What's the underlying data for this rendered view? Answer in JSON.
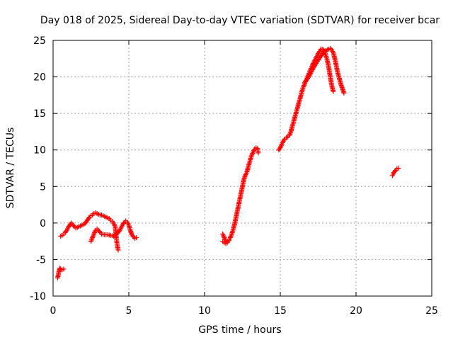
{
  "chart_data": {
    "type": "scatter",
    "title": "Day 018 of 2025, Sidereal Day-to-day VTEC variation (SDTVAR) for receiver bcar",
    "xlabel": "GPS time / hours",
    "ylabel": "SDTVAR / TECUs",
    "xlim": [
      0,
      25
    ],
    "ylim": [
      -10,
      25
    ],
    "xticks": [
      0,
      5,
      10,
      15,
      20,
      25
    ],
    "yticks": [
      -10,
      -5,
      0,
      5,
      10,
      15,
      20,
      25
    ],
    "xtick_labels": [
      "0",
      "5",
      "10",
      "15",
      "20",
      "25"
    ],
    "ytick_labels": [
      "-10",
      "-5",
      "0",
      "5",
      "10",
      "15",
      "20",
      "25"
    ],
    "grid": true,
    "marker": "+",
    "color": "#ff0000",
    "series": [
      {
        "name": "SDTVAR",
        "segments": [
          [
            [
              0.3,
              -7.5
            ],
            [
              0.35,
              -7.0
            ],
            [
              0.4,
              -6.5
            ],
            [
              0.45,
              -6.2
            ],
            [
              0.5,
              -6.3
            ],
            [
              0.6,
              -6.4
            ],
            [
              0.7,
              -6.3
            ]
          ],
          [
            [
              0.5,
              -1.8
            ],
            [
              0.6,
              -1.7
            ],
            [
              0.7,
              -1.5
            ],
            [
              0.8,
              -1.3
            ],
            [
              0.9,
              -1.0
            ],
            [
              1.0,
              -0.6
            ],
            [
              1.1,
              -0.3
            ],
            [
              1.2,
              0.0
            ],
            [
              1.3,
              -0.2
            ],
            [
              1.4,
              -0.5
            ],
            [
              1.5,
              -0.7
            ],
            [
              1.6,
              -0.6
            ],
            [
              1.7,
              -0.5
            ],
            [
              1.8,
              -0.4
            ],
            [
              1.9,
              -0.3
            ],
            [
              2.0,
              -0.2
            ],
            [
              2.1,
              -0.1
            ],
            [
              2.2,
              0.2
            ],
            [
              2.3,
              0.5
            ],
            [
              2.4,
              0.8
            ],
            [
              2.5,
              1.0
            ],
            [
              2.6,
              1.1
            ],
            [
              2.7,
              1.3
            ],
            [
              2.8,
              1.4
            ],
            [
              2.9,
              1.3
            ],
            [
              3.0,
              1.2
            ],
            [
              3.1,
              1.1
            ],
            [
              3.2,
              1.1
            ],
            [
              3.3,
              1.0
            ],
            [
              3.4,
              0.9
            ],
            [
              3.5,
              0.8
            ],
            [
              3.6,
              0.7
            ],
            [
              3.7,
              0.6
            ],
            [
              3.8,
              0.4
            ],
            [
              3.9,
              0.2
            ],
            [
              4.0,
              0.0
            ],
            [
              4.1,
              -0.5
            ],
            [
              4.15,
              -1.5
            ],
            [
              4.2,
              -2.5
            ],
            [
              4.25,
              -3.2
            ],
            [
              4.3,
              -3.7
            ]
          ],
          [
            [
              2.5,
              -2.5
            ],
            [
              2.6,
              -2.0
            ],
            [
              2.7,
              -1.5
            ],
            [
              2.8,
              -1.0
            ],
            [
              2.9,
              -0.8
            ],
            [
              3.0,
              -1.0
            ],
            [
              3.1,
              -1.3
            ],
            [
              3.2,
              -1.5
            ],
            [
              3.4,
              -1.6
            ],
            [
              3.6,
              -1.6
            ],
            [
              3.8,
              -1.7
            ],
            [
              4.0,
              -1.8
            ],
            [
              4.2,
              -1.5
            ],
            [
              4.4,
              -1.0
            ],
            [
              4.5,
              -0.6
            ],
            [
              4.6,
              -0.2
            ],
            [
              4.7,
              0.1
            ],
            [
              4.8,
              0.3
            ],
            [
              4.9,
              0.1
            ],
            [
              5.0,
              -0.3
            ],
            [
              5.1,
              -1.0
            ],
            [
              5.2,
              -1.6
            ],
            [
              5.3,
              -1.9
            ],
            [
              5.4,
              -2.1
            ],
            [
              5.5,
              -2.0
            ]
          ],
          [
            [
              11.2,
              -1.5
            ],
            [
              11.3,
              -2.0
            ],
            [
              11.4,
              -2.5
            ],
            [
              11.5,
              -2.6
            ],
            [
              11.6,
              -2.4
            ],
            [
              11.7,
              -2.0
            ],
            [
              11.8,
              -1.5
            ],
            [
              11.9,
              -0.8
            ],
            [
              12.0,
              0.0
            ],
            [
              12.1,
              1.0
            ],
            [
              12.2,
              2.0
            ],
            [
              12.3,
              3.0
            ],
            [
              12.4,
              4.0
            ],
            [
              12.5,
              5.0
            ],
            [
              12.6,
              6.0
            ],
            [
              12.7,
              6.6
            ],
            [
              12.8,
              7.0
            ],
            [
              12.9,
              7.8
            ],
            [
              13.0,
              8.5
            ],
            [
              13.1,
              9.2
            ],
            [
              13.2,
              9.7
            ],
            [
              13.3,
              10.1
            ],
            [
              13.4,
              10.3
            ],
            [
              13.5,
              10.2
            ],
            [
              13.55,
              9.6
            ]
          ],
          [
            [
              11.2,
              -2.5
            ],
            [
              11.3,
              -2.7
            ],
            [
              11.4,
              -2.8
            ],
            [
              11.5,
              -2.7
            ]
          ],
          [
            [
              14.9,
              10.0
            ],
            [
              15.0,
              10.3
            ],
            [
              15.1,
              10.8
            ],
            [
              15.2,
              11.2
            ],
            [
              15.3,
              11.5
            ],
            [
              15.4,
              11.7
            ],
            [
              15.5,
              11.8
            ],
            [
              15.6,
              12.0
            ],
            [
              15.7,
              12.5
            ],
            [
              15.8,
              13.3
            ],
            [
              15.9,
              14.0
            ],
            [
              16.0,
              14.8
            ],
            [
              16.1,
              15.5
            ],
            [
              16.2,
              16.3
            ],
            [
              16.3,
              17.0
            ],
            [
              16.4,
              17.8
            ],
            [
              16.5,
              18.5
            ],
            [
              16.6,
              19.0
            ],
            [
              16.7,
              19.5
            ],
            [
              16.8,
              20.0
            ],
            [
              16.9,
              20.5
            ],
            [
              17.0,
              21.0
            ],
            [
              17.1,
              21.5
            ],
            [
              17.2,
              22.0
            ],
            [
              17.3,
              22.4
            ],
            [
              17.4,
              22.8
            ],
            [
              17.5,
              23.2
            ],
            [
              17.6,
              23.5
            ],
            [
              17.7,
              23.8
            ],
            [
              17.8,
              23.8
            ],
            [
              17.9,
              23.5
            ],
            [
              18.0,
              23.0
            ],
            [
              18.1,
              22.3
            ],
            [
              18.2,
              21.3
            ],
            [
              18.3,
              20.0
            ],
            [
              18.4,
              18.8
            ],
            [
              18.5,
              18.0
            ]
          ],
          [
            [
              16.6,
              19.2
            ],
            [
              16.8,
              19.8
            ],
            [
              17.0,
              20.5
            ],
            [
              17.2,
              21.3
            ],
            [
              17.4,
              22.0
            ],
            [
              17.6,
              22.6
            ],
            [
              17.8,
              23.2
            ],
            [
              18.0,
              23.6
            ],
            [
              18.2,
              23.8
            ],
            [
              18.3,
              23.9
            ],
            [
              18.4,
              23.7
            ],
            [
              18.5,
              23.3
            ],
            [
              18.6,
              22.5
            ],
            [
              18.7,
              21.5
            ],
            [
              18.8,
              20.5
            ],
            [
              18.9,
              19.8
            ],
            [
              19.0,
              19.0
            ],
            [
              19.1,
              18.4
            ],
            [
              19.2,
              17.8
            ]
          ],
          [
            [
              22.4,
              6.5
            ],
            [
              22.5,
              6.9
            ],
            [
              22.6,
              7.2
            ],
            [
              22.7,
              7.4
            ],
            [
              22.8,
              7.5
            ]
          ]
        ]
      }
    ]
  }
}
